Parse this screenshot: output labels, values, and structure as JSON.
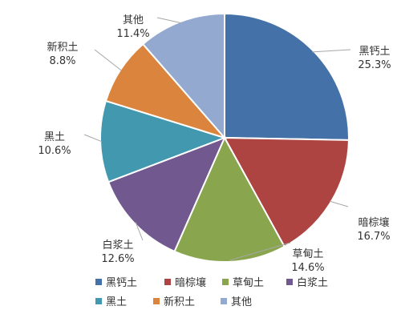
{
  "chart_data": {
    "type": "pie",
    "title": "",
    "legend": "bottom",
    "slices": [
      {
        "name": "黑钙土",
        "value": 25.3,
        "label": "25.3%",
        "color": "#4472a8"
      },
      {
        "name": "暗棕壤",
        "value": 16.7,
        "label": "16.7%",
        "color": "#ad4442"
      },
      {
        "name": "草甸土",
        "value": 14.6,
        "label": "14.6%",
        "color": "#89a54e"
      },
      {
        "name": "白浆土",
        "value": 12.6,
        "label": "12.6%",
        "color": "#71588f"
      },
      {
        "name": "黑土",
        "value": 10.6,
        "label": "10.6%",
        "color": "#4198af"
      },
      {
        "name": "新积土",
        "value": 8.8,
        "label": "8.8%",
        "color": "#db843d"
      },
      {
        "name": "其他",
        "value": 11.4,
        "label": "11.4%",
        "color": "#93a9cf"
      }
    ]
  }
}
